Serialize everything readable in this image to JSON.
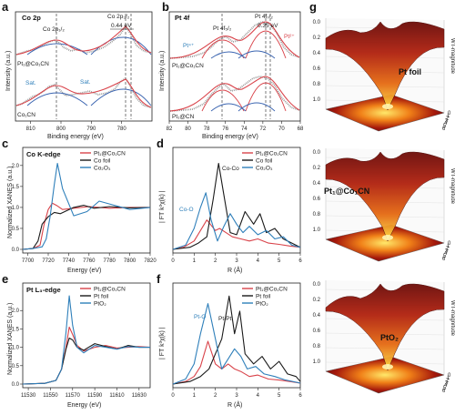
{
  "colors": {
    "red": "#d9434a",
    "blue": "#2e7fba",
    "black": "#1a1a1a",
    "gray": "#9a9a9a",
    "fit": "#3a64b0"
  },
  "panels": {
    "a": {
      "label": "a",
      "title": "Co 2p",
      "xlabel": "Binding energy (eV)",
      "ylabel": "Intensity (a.u.)",
      "sample_top": "Pt₁@Co₁CN",
      "sample_bot": "Co₁CN",
      "ann_12": "Co 2p₁/₂",
      "ann_32": "Co 2p₃/₂",
      "shift": "0.44 eV",
      "sat1": "Sat.",
      "sat2": "Sat."
    },
    "b": {
      "label": "b",
      "title": "Pt 4f",
      "xlabel": "Binding energy (eV)",
      "ylabel": "Intensity (a.u.)",
      "sample_top": "Pt₁@Co₁CN",
      "sample_bot": "Pt₁@CN",
      "ann_52": "Pt 4f₅/₂",
      "ann_72": "Pt 4f₇/₂",
      "shift": "0.35 eV",
      "pt4": "Pt⁴⁺",
      "pt2": "Pt²⁺"
    },
    "c": {
      "label": "c",
      "title": "Co K-edge",
      "xlabel": "Energy (eV)",
      "ylabel": "Normalized XANES (a.u.)"
    },
    "d": {
      "label": "d",
      "xlabel": "R (Å)",
      "ylabel": "| FT k³χ(k) |",
      "ann_coco": "Co-Co",
      "ann_coo": "Co-O"
    },
    "e": {
      "label": "e",
      "title": "Pt L₃-edge",
      "xlabel": "Energy (eV)",
      "ylabel": "Normalized XANES (a.u.)"
    },
    "f": {
      "label": "f",
      "xlabel": "R (Å)",
      "ylabel": "| FT k³χ(k) |",
      "ann_pto": "Pt-O",
      "ann_ptpt": "Pt-Pt"
    },
    "g": {
      "label": "g",
      "zlabel": "WT-magnitude",
      "surf1": "Pt foil",
      "surf2": "Pt₁@Co₁CN",
      "surf3": "PtO₂",
      "zticks": [
        "0.0",
        "0.2",
        "0.4",
        "0.6",
        "0.8",
        "1.0"
      ],
      "rticks": [
        "0",
        "1",
        "2",
        "3",
        "4",
        "5",
        "6"
      ]
    }
  },
  "chart_data": [
    {
      "panel": "a",
      "type": "line",
      "title": "Co 2p",
      "xlabel": "Binding energy (eV)",
      "ylabel": "Intensity (a.u.)",
      "xlim": [
        815,
        770
      ],
      "xticks": [
        810,
        800,
        790,
        780
      ],
      "series": [
        {
          "name": "Pt₁@Co₁CN",
          "x": [
            814,
            810,
            805,
            802,
            800,
            797,
            794,
            790,
            786,
            783,
            781,
            779,
            777,
            774,
            771
          ],
          "y": [
            0.7,
            0.73,
            0.76,
            0.83,
            0.8,
            0.72,
            0.76,
            0.72,
            0.76,
            0.82,
            0.96,
            0.84,
            0.74,
            0.7,
            0.68
          ]
        },
        {
          "name": "Co₁CN",
          "x": [
            814,
            810,
            806,
            802,
            800,
            797,
            794,
            790,
            787,
            783,
            781,
            779,
            777,
            774,
            771
          ],
          "y": [
            0.18,
            0.22,
            0.27,
            0.31,
            0.38,
            0.28,
            0.26,
            0.28,
            0.33,
            0.36,
            0.52,
            0.31,
            0.22,
            0.18,
            0.16
          ]
        }
      ]
    },
    {
      "panel": "b",
      "type": "line",
      "title": "Pt 4f",
      "xlabel": "Binding energy (eV)",
      "ylabel": "Intensity (a.u.)",
      "xlim": [
        82,
        68
      ],
      "xticks": [
        82,
        80,
        78,
        76,
        74,
        72,
        70,
        68
      ],
      "series": [
        {
          "name": "Pt₁@Co₁CN",
          "x": [
            82,
            80,
            78,
            77,
            76,
            75,
            74,
            73,
            72,
            71,
            70,
            69,
            68
          ],
          "y": [
            0.6,
            0.61,
            0.64,
            0.7,
            0.8,
            0.74,
            0.78,
            0.9,
            0.96,
            0.84,
            0.66,
            0.62,
            0.6
          ]
        },
        {
          "name": "Pt₁@CN",
          "x": [
            82,
            80,
            78,
            77,
            76,
            75,
            74,
            73,
            72,
            71,
            70,
            69,
            68
          ],
          "y": [
            0.1,
            0.11,
            0.15,
            0.22,
            0.35,
            0.26,
            0.3,
            0.44,
            0.46,
            0.3,
            0.14,
            0.11,
            0.1
          ]
        }
      ]
    },
    {
      "panel": "c",
      "type": "line",
      "title": "Co K-edge",
      "xlabel": "Energy (eV)",
      "ylabel": "Normalized XANES (a.u.)",
      "xlim": [
        7695,
        7820
      ],
      "xticks": [
        7700,
        7720,
        7740,
        7760,
        7780,
        7800,
        7820
      ],
      "series": [
        {
          "name": "Pt₁@Co₁CN",
          "color": "red",
          "x": [
            7695,
            7705,
            7712,
            7716,
            7720,
            7724,
            7728,
            7734,
            7745,
            7760,
            7780,
            7800,
            7820
          ],
          "y": [
            0.0,
            0.02,
            0.1,
            0.6,
            0.95,
            1.1,
            1.05,
            0.95,
            0.98,
            1.02,
            0.98,
            1.0,
            1.0
          ]
        },
        {
          "name": "Co foil",
          "color": "black",
          "x": [
            7695,
            7705,
            7710,
            7714,
            7720,
            7726,
            7732,
            7745,
            7755,
            7765,
            7780,
            7800,
            7820
          ],
          "y": [
            0.0,
            0.02,
            0.2,
            0.6,
            0.78,
            0.88,
            0.85,
            1.0,
            1.05,
            0.98,
            1.02,
            0.99,
            1.0
          ]
        },
        {
          "name": "Co₂O₃",
          "color": "blue",
          "x": [
            7695,
            7705,
            7714,
            7718,
            7722,
            7726,
            7729,
            7734,
            7745,
            7758,
            7770,
            7785,
            7800,
            7820
          ],
          "y": [
            0.0,
            0.02,
            0.06,
            0.25,
            0.8,
            1.55,
            2.05,
            1.45,
            0.8,
            0.9,
            1.15,
            1.05,
            0.95,
            1.0
          ]
        }
      ]
    },
    {
      "panel": "d",
      "type": "line",
      "xlabel": "R (Å)",
      "ylabel": "| FT k³χ(k) |",
      "xlim": [
        0,
        6
      ],
      "xticks": [
        0,
        1,
        2,
        3,
        4,
        5,
        6
      ],
      "series": [
        {
          "name": "Pt₁@Co₁CN",
          "color": "red",
          "x": [
            0,
            0.5,
            1.0,
            1.3,
            1.6,
            2.0,
            2.2,
            2.5,
            2.8,
            3.2,
            3.6,
            4.0,
            4.5,
            5.0,
            5.5,
            6.0
          ],
          "y": [
            0.0,
            0.05,
            0.2,
            0.45,
            0.7,
            0.45,
            0.5,
            0.4,
            0.3,
            0.25,
            0.2,
            0.25,
            0.15,
            0.12,
            0.08,
            0.05
          ]
        },
        {
          "name": "Co foil",
          "color": "black",
          "x": [
            0,
            0.8,
            1.2,
            1.6,
            1.9,
            2.15,
            2.4,
            2.7,
            3.0,
            3.4,
            3.8,
            4.1,
            4.4,
            4.8,
            5.2,
            5.6,
            6.0
          ],
          "y": [
            0.0,
            0.05,
            0.15,
            0.3,
            1.2,
            2.05,
            1.3,
            0.4,
            0.35,
            0.9,
            0.6,
            0.85,
            0.4,
            0.5,
            0.25,
            0.15,
            0.05
          ]
        },
        {
          "name": "Co₂O₃",
          "color": "blue",
          "x": [
            0,
            0.6,
            1.0,
            1.3,
            1.55,
            1.8,
            2.1,
            2.4,
            2.7,
            3.0,
            3.3,
            3.6,
            4.0,
            4.4,
            4.8,
            5.2,
            5.6,
            6.0
          ],
          "y": [
            0.0,
            0.1,
            0.5,
            1.0,
            1.35,
            0.7,
            0.2,
            0.55,
            0.85,
            0.6,
            0.4,
            0.55,
            0.35,
            0.45,
            0.25,
            0.3,
            0.1,
            0.05
          ]
        }
      ]
    },
    {
      "panel": "e",
      "type": "line",
      "title": "Pt L₃-edge",
      "xlabel": "Energy (eV)",
      "ylabel": "Normalized XANES (a.u.)",
      "xlim": [
        11525,
        11640
      ],
      "xticks": [
        11530,
        11550,
        11570,
        11590,
        11610,
        11630
      ],
      "series": [
        {
          "name": "Pt₁@Co₁CN",
          "color": "red",
          "x": [
            11525,
            11545,
            11555,
            11560,
            11564,
            11567,
            11570,
            11574,
            11580,
            11590,
            11600,
            11610,
            11620,
            11630,
            11640
          ],
          "y": [
            0.0,
            0.02,
            0.1,
            0.4,
            1.0,
            1.55,
            1.35,
            1.05,
            0.9,
            1.0,
            1.05,
            0.98,
            1.0,
            1.02,
            1.0
          ]
        },
        {
          "name": "Pt foil",
          "color": "black",
          "x": [
            11525,
            11545,
            11555,
            11560,
            11564,
            11567,
            11570,
            11574,
            11580,
            11590,
            11600,
            11610,
            11620,
            11630,
            11640
          ],
          "y": [
            0.0,
            0.02,
            0.1,
            0.4,
            0.95,
            1.25,
            1.2,
            1.0,
            0.92,
            1.1,
            1.02,
            0.95,
            1.05,
            1.0,
            1.0
          ]
        },
        {
          "name": "PtO₂",
          "color": "blue",
          "x": [
            11525,
            11545,
            11555,
            11560,
            11564,
            11567,
            11570,
            11574,
            11580,
            11590,
            11600,
            11610,
            11620,
            11630,
            11640
          ],
          "y": [
            0.0,
            0.02,
            0.1,
            0.4,
            1.4,
            2.4,
            1.6,
            1.0,
            0.85,
            1.05,
            1.0,
            0.95,
            1.02,
            1.0,
            1.0
          ]
        }
      ]
    },
    {
      "panel": "f",
      "type": "line",
      "xlabel": "R (Å)",
      "ylabel": "| FT k³χ(k) |",
      "xlim": [
        0,
        6
      ],
      "xticks": [
        0,
        1,
        2,
        3,
        4,
        5,
        6
      ],
      "series": [
        {
          "name": "Pt₁@Co₁CN",
          "color": "red",
          "x": [
            0,
            0.6,
            1.0,
            1.3,
            1.65,
            2.0,
            2.3,
            2.6,
            2.9,
            3.2,
            3.6,
            4.0,
            4.5,
            5.0,
            5.5,
            6.0
          ],
          "y": [
            0.0,
            0.05,
            0.15,
            0.35,
            0.85,
            0.4,
            0.3,
            0.4,
            0.3,
            0.25,
            0.15,
            0.18,
            0.1,
            0.08,
            0.05,
            0.02
          ]
        },
        {
          "name": "Pt foil",
          "color": "black",
          "x": [
            0,
            0.8,
            1.3,
            1.7,
            2.0,
            2.3,
            2.65,
            2.9,
            3.15,
            3.4,
            3.8,
            4.2,
            4.6,
            5.0,
            5.4,
            5.8,
            6.0
          ],
          "y": [
            0.0,
            0.05,
            0.15,
            0.3,
            0.6,
            0.9,
            1.75,
            1.0,
            1.45,
            0.6,
            0.4,
            0.55,
            0.3,
            0.45,
            0.2,
            0.15,
            0.05
          ]
        },
        {
          "name": "PtO₂",
          "color": "blue",
          "x": [
            0,
            0.6,
            1.0,
            1.3,
            1.65,
            2.0,
            2.3,
            2.6,
            2.9,
            3.2,
            3.5,
            3.9,
            4.3,
            4.8,
            5.3,
            6.0
          ],
          "y": [
            0.0,
            0.1,
            0.4,
            1.0,
            1.6,
            0.9,
            0.3,
            0.5,
            0.7,
            0.55,
            0.3,
            0.35,
            0.2,
            0.15,
            0.08,
            0.02
          ]
        }
      ]
    }
  ]
}
